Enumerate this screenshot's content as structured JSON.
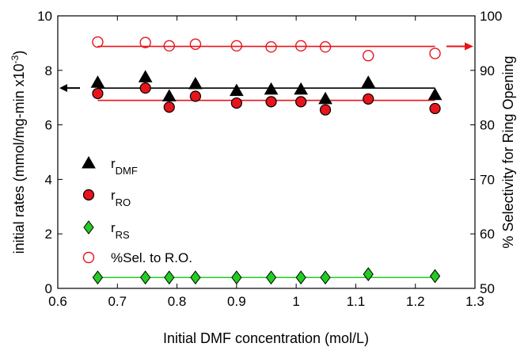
{
  "chart_data": {
    "type": "scatter",
    "title": "",
    "xlabel": "Initial DMF concentration (mol/L)",
    "ylabel": "initial rates (mmol/mg-min x10",
    "ylabel_sup": "-3",
    "ylabel_close": ")",
    "y2label": "% Selectivity for Ring Opening",
    "xlim": [
      0.6,
      1.3
    ],
    "ylim": [
      0,
      10
    ],
    "y2lim": [
      50,
      100
    ],
    "xticks": [
      "0.6",
      "0.7",
      "0.8",
      "0.9",
      "1",
      "1.1",
      "1.2",
      "1.3"
    ],
    "yticks": [
      "0",
      "2",
      "4",
      "6",
      "8",
      "10"
    ],
    "y2ticks": [
      "50",
      "60",
      "70",
      "80",
      "90",
      "100"
    ],
    "grid": false,
    "legend_position": "left-middle",
    "x": [
      0.667,
      0.747,
      0.787,
      0.831,
      0.9,
      0.958,
      1.008,
      1.049,
      1.121,
      1.233
    ],
    "series": [
      {
        "name": "r_DMF",
        "legend_main": "r",
        "legend_sub": "DMF",
        "marker": "triangle",
        "color": "#000000",
        "axis": "left",
        "values": [
          7.55,
          7.75,
          7.05,
          7.5,
          7.25,
          7.3,
          7.3,
          6.95,
          7.55,
          7.1
        ],
        "fit": 7.35
      },
      {
        "name": "r_RO",
        "legend_main": "r",
        "legend_sub": "RO",
        "marker": "circle",
        "color": "#e8141b",
        "axis": "left",
        "values": [
          7.15,
          7.35,
          6.65,
          7.05,
          6.8,
          6.85,
          6.85,
          6.55,
          6.95,
          6.6
        ],
        "fit": 6.9
      },
      {
        "name": "r_RS",
        "legend_main": "r",
        "legend_sub": "RS",
        "marker": "diamond",
        "color": "#22cc22",
        "axis": "left",
        "values": [
          0.4,
          0.4,
          0.4,
          0.4,
          0.4,
          0.4,
          0.4,
          0.4,
          0.52,
          0.45
        ],
        "fit": 0.4
      },
      {
        "name": "%Sel. to R.O.",
        "legend_main": "%Sel. to R.O.",
        "legend_sub": "",
        "marker": "open-circle",
        "color": "#e8141b",
        "axis": "right",
        "values": [
          95.2,
          95.1,
          94.5,
          94.8,
          94.5,
          94.3,
          94.5,
          94.3,
          92.7,
          93.1
        ],
        "fit": 94.4
      }
    ],
    "indicators": [
      {
        "axis": "left",
        "color": "#000000"
      },
      {
        "axis": "right",
        "color": "#e8141b"
      }
    ]
  }
}
